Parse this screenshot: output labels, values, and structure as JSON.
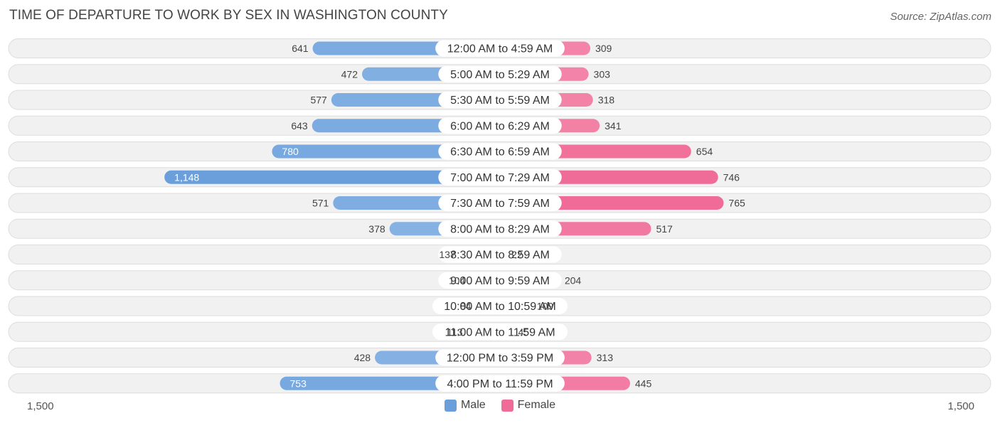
{
  "title": "TIME OF DEPARTURE TO WORK BY SEX IN WASHINGTON COUNTY",
  "source": "Source: ZipAtlas.com",
  "colors": {
    "male": "#6a9fdc",
    "male_light": "#a9c9ec",
    "female": "#f06b97",
    "female_light": "#f7a8c2",
    "row_bg": "#f1f1f1",
    "row_border": "#dddddd"
  },
  "chart_data": {
    "type": "bar",
    "orientation": "horizontal-diverging",
    "title": "TIME OF DEPARTURE TO WORK BY SEX IN WASHINGTON COUNTY",
    "categories": [
      "12:00 AM to 4:59 AM",
      "5:00 AM to 5:29 AM",
      "5:30 AM to 5:59 AM",
      "6:00 AM to 6:29 AM",
      "6:30 AM to 6:59 AM",
      "7:00 AM to 7:29 AM",
      "7:30 AM to 7:59 AM",
      "8:00 AM to 8:29 AM",
      "8:30 AM to 8:59 AM",
      "9:00 AM to 9:59 AM",
      "10:00 AM to 10:59 AM",
      "11:00 AM to 11:59 AM",
      "12:00 PM to 3:59 PM",
      "4:00 PM to 11:59 PM"
    ],
    "series": [
      {
        "name": "Male",
        "values": [
          641,
          472,
          577,
          643,
          780,
          1148,
          571,
          378,
          137,
          104,
          84,
          113,
          428,
          753
        ],
        "labels": [
          "641",
          "472",
          "577",
          "643",
          "780",
          "1,148",
          "571",
          "378",
          "137",
          "104",
          "84",
          "113",
          "428",
          "753"
        ]
      },
      {
        "name": "Female",
        "values": [
          309,
          303,
          318,
          341,
          654,
          746,
          765,
          517,
          22,
          204,
          109,
          45,
          313,
          445
        ],
        "labels": [
          "309",
          "303",
          "318",
          "341",
          "654",
          "746",
          "765",
          "517",
          "22",
          "204",
          "109",
          "45",
          "313",
          "445"
        ]
      }
    ],
    "xlim": [
      -1500,
      1500
    ],
    "axis_labels": {
      "left": "1,500",
      "right": "1,500"
    },
    "legend": [
      "Male",
      "Female"
    ],
    "legend_position": "bottom-center"
  }
}
